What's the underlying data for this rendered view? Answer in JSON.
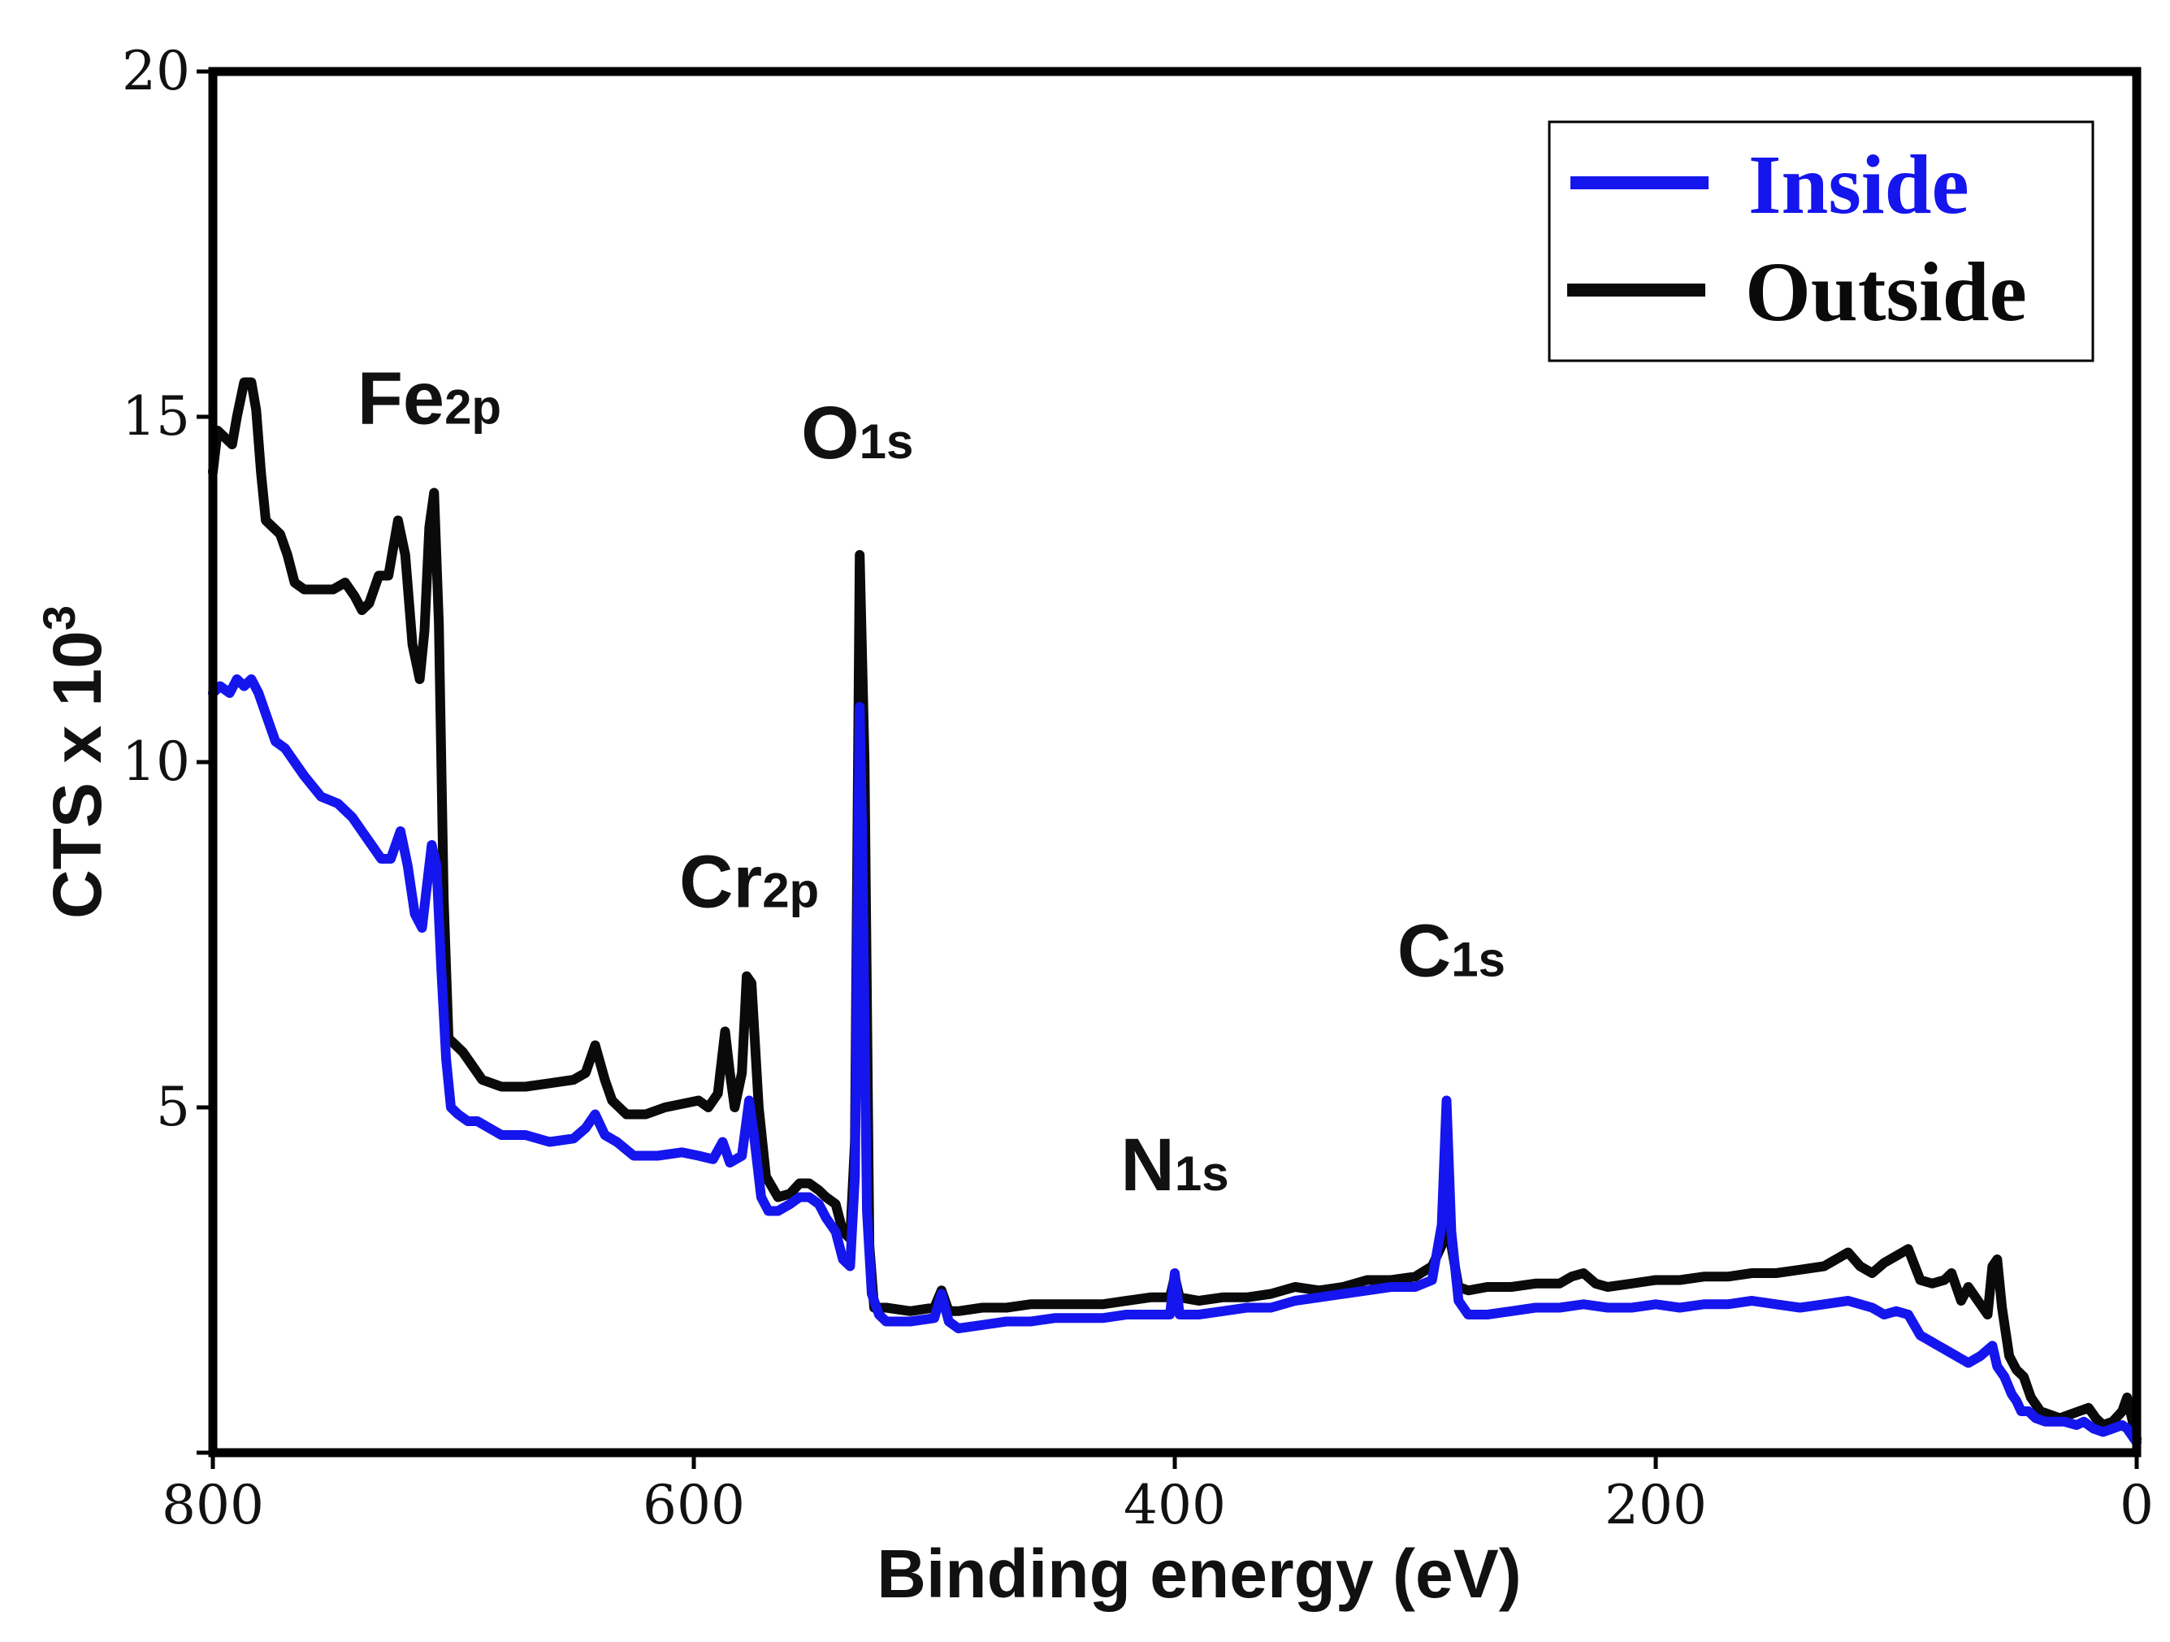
{
  "chart_data": {
    "type": "line",
    "title": "",
    "xlabel": "Binding energy (eV)",
    "ylabel_main": "CTS x 10",
    "ylabel_exp": "3",
    "xlim": [
      800,
      0
    ],
    "ylim": [
      0,
      20
    ],
    "xticks": [
      800,
      600,
      400,
      200,
      0
    ],
    "xtick_labels": [
      "800",
      "600",
      "400",
      "200",
      "0"
    ],
    "yticks": [
      5,
      10,
      15,
      20
    ],
    "ytick_labels": [
      "5",
      "10",
      "15",
      "20"
    ],
    "grid": false,
    "legend_position": "top-right",
    "annotations": [
      {
        "main": "Fe",
        "sub": "2p",
        "x": 710,
        "y": 14.9
      },
      {
        "main": "O",
        "sub": "1s",
        "x": 532,
        "y": 14.4
      },
      {
        "main": "Cr",
        "sub": "2p",
        "x": 577,
        "y": 7.9
      },
      {
        "main": "C",
        "sub": "1s",
        "x": 285,
        "y": 6.9
      },
      {
        "main": "N",
        "sub": "1s",
        "x": 400,
        "y": 3.8
      }
    ],
    "series": [
      {
        "name": "Inside",
        "color": "#1515ee",
        "points": [
          [
            800,
            11.0
          ],
          [
            797,
            11.1
          ],
          [
            793,
            11.0
          ],
          [
            790,
            11.2
          ],
          [
            787,
            11.1
          ],
          [
            784,
            11.2
          ],
          [
            781,
            11.0
          ],
          [
            778,
            10.7
          ],
          [
            774,
            10.3
          ],
          [
            770,
            10.2
          ],
          [
            766,
            10.0
          ],
          [
            762,
            9.8
          ],
          [
            755,
            9.5
          ],
          [
            748,
            9.4
          ],
          [
            742,
            9.2
          ],
          [
            738,
            9.0
          ],
          [
            734,
            8.8
          ],
          [
            730,
            8.6
          ],
          [
            726,
            8.6
          ],
          [
            722,
            9.0
          ],
          [
            719,
            8.5
          ],
          [
            716,
            7.8
          ],
          [
            713,
            7.6
          ],
          [
            711,
            8.2
          ],
          [
            709,
            8.8
          ],
          [
            707,
            8.5
          ],
          [
            705,
            7.0
          ],
          [
            703,
            5.7
          ],
          [
            701,
            5.0
          ],
          [
            698,
            4.9
          ],
          [
            694,
            4.8
          ],
          [
            690,
            4.8
          ],
          [
            685,
            4.7
          ],
          [
            680,
            4.6
          ],
          [
            670,
            4.6
          ],
          [
            660,
            4.5
          ],
          [
            650,
            4.55
          ],
          [
            645,
            4.7
          ],
          [
            641,
            4.9
          ],
          [
            637,
            4.6
          ],
          [
            632,
            4.5
          ],
          [
            625,
            4.3
          ],
          [
            615,
            4.3
          ],
          [
            605,
            4.35
          ],
          [
            598,
            4.3
          ],
          [
            592,
            4.25
          ],
          [
            588,
            4.5
          ],
          [
            585,
            4.2
          ],
          [
            580,
            4.3
          ],
          [
            577,
            5.1
          ],
          [
            575,
            4.6
          ],
          [
            572,
            3.7
          ],
          [
            569,
            3.5
          ],
          [
            565,
            3.5
          ],
          [
            560,
            3.6
          ],
          [
            556,
            3.7
          ],
          [
            552,
            3.7
          ],
          [
            548,
            3.6
          ],
          [
            545,
            3.4
          ],
          [
            541,
            3.2
          ],
          [
            538,
            2.8
          ],
          [
            535,
            2.7
          ],
          [
            533,
            4.0
          ],
          [
            531,
            10.8
          ],
          [
            530,
            9.0
          ],
          [
            528,
            3.5
          ],
          [
            526,
            2.3
          ],
          [
            523,
            2.0
          ],
          [
            520,
            1.9
          ],
          [
            510,
            1.9
          ],
          [
            500,
            1.95
          ],
          [
            497,
            2.3
          ],
          [
            494,
            1.9
          ],
          [
            490,
            1.8
          ],
          [
            480,
            1.85
          ],
          [
            470,
            1.9
          ],
          [
            460,
            1.9
          ],
          [
            450,
            1.95
          ],
          [
            440,
            1.95
          ],
          [
            430,
            1.95
          ],
          [
            420,
            2.0
          ],
          [
            410,
            2.0
          ],
          [
            402,
            2.0
          ],
          [
            400,
            2.6
          ],
          [
            398,
            2.0
          ],
          [
            390,
            2.0
          ],
          [
            380,
            2.05
          ],
          [
            370,
            2.1
          ],
          [
            360,
            2.1
          ],
          [
            350,
            2.2
          ],
          [
            340,
            2.25
          ],
          [
            330,
            2.3
          ],
          [
            320,
            2.35
          ],
          [
            310,
            2.4
          ],
          [
            300,
            2.4
          ],
          [
            293,
            2.5
          ],
          [
            289,
            3.3
          ],
          [
            287,
            5.1
          ],
          [
            285,
            3.2
          ],
          [
            282,
            2.2
          ],
          [
            278,
            2.0
          ],
          [
            270,
            2.0
          ],
          [
            260,
            2.05
          ],
          [
            250,
            2.1
          ],
          [
            240,
            2.1
          ],
          [
            230,
            2.15
          ],
          [
            220,
            2.1
          ],
          [
            210,
            2.1
          ],
          [
            200,
            2.15
          ],
          [
            190,
            2.1
          ],
          [
            180,
            2.15
          ],
          [
            170,
            2.15
          ],
          [
            160,
            2.2
          ],
          [
            150,
            2.15
          ],
          [
            140,
            2.1
          ],
          [
            130,
            2.15
          ],
          [
            120,
            2.2
          ],
          [
            115,
            2.15
          ],
          [
            110,
            2.1
          ],
          [
            105,
            2.0
          ],
          [
            100,
            2.05
          ],
          [
            95,
            2.0
          ],
          [
            90,
            1.7
          ],
          [
            85,
            1.6
          ],
          [
            80,
            1.5
          ],
          [
            75,
            1.4
          ],
          [
            70,
            1.3
          ],
          [
            65,
            1.4
          ],
          [
            60,
            1.55
          ],
          [
            58,
            1.25
          ],
          [
            55,
            1.1
          ],
          [
            52,
            0.85
          ],
          [
            50,
            0.75
          ],
          [
            48,
            0.6
          ],
          [
            45,
            0.6
          ],
          [
            42,
            0.5
          ],
          [
            38,
            0.45
          ],
          [
            34,
            0.45
          ],
          [
            30,
            0.45
          ],
          [
            25,
            0.4
          ],
          [
            22,
            0.45
          ],
          [
            18,
            0.35
          ],
          [
            14,
            0.3
          ],
          [
            10,
            0.35
          ],
          [
            6,
            0.4
          ],
          [
            4,
            0.35
          ],
          [
            2,
            0.25
          ],
          [
            0,
            0.15
          ]
        ]
      },
      {
        "name": "Outside",
        "color": "#0a0a0a",
        "points": [
          [
            800,
            14.2
          ],
          [
            798,
            14.8
          ],
          [
            795,
            14.7
          ],
          [
            792,
            14.6
          ],
          [
            790,
            15.0
          ],
          [
            787,
            15.5
          ],
          [
            784,
            15.5
          ],
          [
            782,
            15.1
          ],
          [
            780,
            14.2
          ],
          [
            778,
            13.5
          ],
          [
            775,
            13.4
          ],
          [
            772,
            13.3
          ],
          [
            769,
            13.0
          ],
          [
            766,
            12.6
          ],
          [
            762,
            12.5
          ],
          [
            756,
            12.5
          ],
          [
            750,
            12.5
          ],
          [
            745,
            12.6
          ],
          [
            741,
            12.4
          ],
          [
            738,
            12.2
          ],
          [
            735,
            12.3
          ],
          [
            731,
            12.7
          ],
          [
            727,
            12.7
          ],
          [
            723,
            13.5
          ],
          [
            720,
            13.0
          ],
          [
            717,
            11.7
          ],
          [
            714,
            11.2
          ],
          [
            712,
            11.9
          ],
          [
            710,
            13.4
          ],
          [
            708,
            13.9
          ],
          [
            706,
            12.0
          ],
          [
            704,
            8.0
          ],
          [
            702,
            6.0
          ],
          [
            699,
            5.9
          ],
          [
            696,
            5.8
          ],
          [
            692,
            5.6
          ],
          [
            688,
            5.4
          ],
          [
            680,
            5.3
          ],
          [
            670,
            5.3
          ],
          [
            660,
            5.35
          ],
          [
            650,
            5.4
          ],
          [
            645,
            5.5
          ],
          [
            641,
            5.9
          ],
          [
            637,
            5.4
          ],
          [
            634,
            5.1
          ],
          [
            628,
            4.9
          ],
          [
            620,
            4.9
          ],
          [
            612,
            5.0
          ],
          [
            605,
            5.05
          ],
          [
            598,
            5.1
          ],
          [
            594,
            5.0
          ],
          [
            590,
            5.2
          ],
          [
            587,
            6.1
          ],
          [
            585,
            5.5
          ],
          [
            583,
            5.0
          ],
          [
            580,
            5.5
          ],
          [
            578,
            6.9
          ],
          [
            576,
            6.8
          ],
          [
            573,
            5.0
          ],
          [
            570,
            4.0
          ],
          [
            565,
            3.7
          ],
          [
            560,
            3.75
          ],
          [
            556,
            3.9
          ],
          [
            552,
            3.9
          ],
          [
            548,
            3.8
          ],
          [
            545,
            3.7
          ],
          [
            541,
            3.6
          ],
          [
            538,
            3.2
          ],
          [
            535,
            3.1
          ],
          [
            533,
            4.5
          ],
          [
            531,
            13.0
          ],
          [
            529,
            10.0
          ],
          [
            527,
            3.0
          ],
          [
            525,
            2.1
          ],
          [
            520,
            2.1
          ],
          [
            510,
            2.05
          ],
          [
            500,
            2.1
          ],
          [
            497,
            2.35
          ],
          [
            494,
            2.05
          ],
          [
            490,
            2.05
          ],
          [
            480,
            2.1
          ],
          [
            470,
            2.1
          ],
          [
            460,
            2.15
          ],
          [
            450,
            2.15
          ],
          [
            440,
            2.15
          ],
          [
            430,
            2.15
          ],
          [
            420,
            2.2
          ],
          [
            410,
            2.25
          ],
          [
            402,
            2.25
          ],
          [
            400,
            2.55
          ],
          [
            398,
            2.25
          ],
          [
            390,
            2.2
          ],
          [
            380,
            2.25
          ],
          [
            370,
            2.25
          ],
          [
            360,
            2.3
          ],
          [
            350,
            2.4
          ],
          [
            340,
            2.35
          ],
          [
            330,
            2.4
          ],
          [
            320,
            2.5
          ],
          [
            310,
            2.5
          ],
          [
            300,
            2.55
          ],
          [
            293,
            2.7
          ],
          [
            289,
            3.0
          ],
          [
            287,
            4.0
          ],
          [
            285,
            3.0
          ],
          [
            282,
            2.4
          ],
          [
            278,
            2.35
          ],
          [
            270,
            2.4
          ],
          [
            260,
            2.4
          ],
          [
            250,
            2.45
          ],
          [
            240,
            2.45
          ],
          [
            235,
            2.55
          ],
          [
            230,
            2.6
          ],
          [
            225,
            2.45
          ],
          [
            220,
            2.4
          ],
          [
            210,
            2.45
          ],
          [
            200,
            2.5
          ],
          [
            190,
            2.5
          ],
          [
            180,
            2.55
          ],
          [
            170,
            2.55
          ],
          [
            160,
            2.6
          ],
          [
            150,
            2.6
          ],
          [
            140,
            2.65
          ],
          [
            130,
            2.7
          ],
          [
            120,
            2.9
          ],
          [
            115,
            2.7
          ],
          [
            110,
            2.6
          ],
          [
            105,
            2.75
          ],
          [
            100,
            2.85
          ],
          [
            95,
            2.95
          ],
          [
            90,
            2.5
          ],
          [
            85,
            2.45
          ],
          [
            80,
            2.5
          ],
          [
            77,
            2.6
          ],
          [
            73,
            2.2
          ],
          [
            70,
            2.4
          ],
          [
            66,
            2.2
          ],
          [
            62,
            2.0
          ],
          [
            60,
            2.7
          ],
          [
            58,
            2.8
          ],
          [
            56,
            2.1
          ],
          [
            53,
            1.4
          ],
          [
            50,
            1.2
          ],
          [
            47,
            1.1
          ],
          [
            44,
            0.8
          ],
          [
            40,
            0.6
          ],
          [
            36,
            0.55
          ],
          [
            32,
            0.5
          ],
          [
            28,
            0.55
          ],
          [
            24,
            0.6
          ],
          [
            20,
            0.65
          ],
          [
            17,
            0.5
          ],
          [
            14,
            0.4
          ],
          [
            10,
            0.45
          ],
          [
            6,
            0.6
          ],
          [
            4,
            0.8
          ],
          [
            2,
            0.5
          ],
          [
            0,
            0.2
          ]
        ]
      }
    ]
  }
}
